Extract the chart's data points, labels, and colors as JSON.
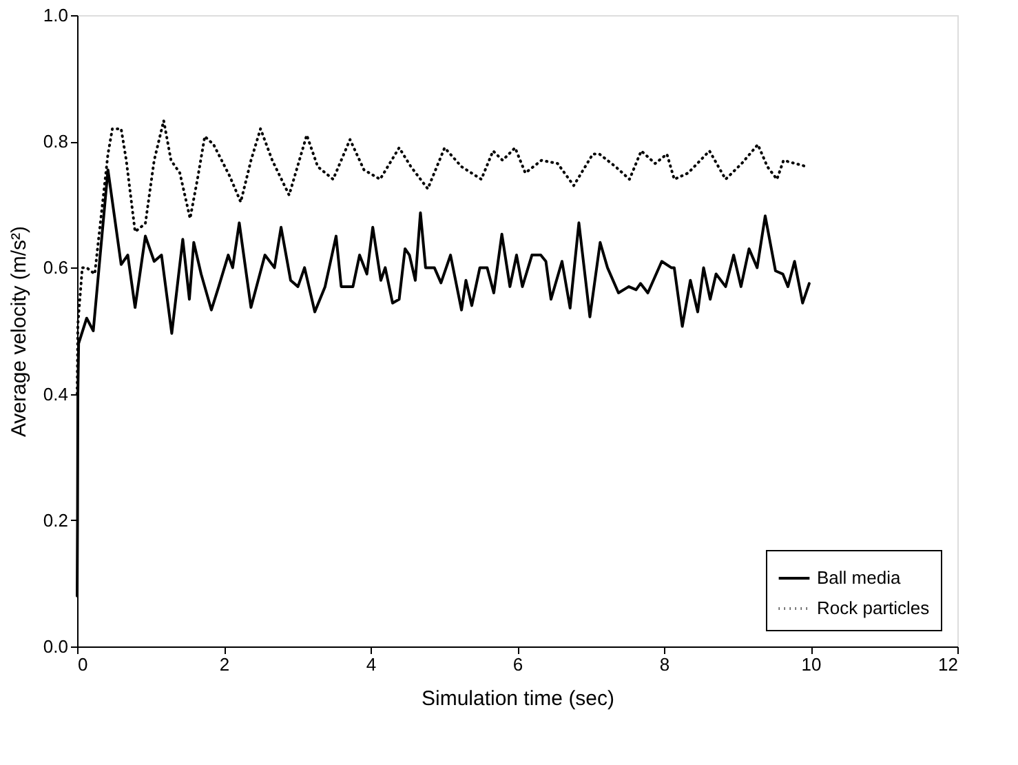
{
  "chart_data": {
    "type": "line",
    "xlabel": "Simulation time (sec)",
    "ylabel": "Average velocity (m/s²)",
    "xlim": [
      0,
      12
    ],
    "ylim": [
      0,
      1
    ],
    "xticks": [
      0,
      2,
      4,
      6,
      8,
      10,
      12
    ],
    "yticks": [
      {
        "value": 0,
        "label": "0.0"
      },
      {
        "value": 0.2,
        "label": "0.2"
      },
      {
        "value": 0.4,
        "label": "0.4"
      },
      {
        "value": 0.6,
        "label": "0.6"
      },
      {
        "value": 0.8,
        "label": "0.8"
      },
      {
        "value": 1,
        "label": "1.0"
      }
    ],
    "grid": false,
    "legend": "bottom right",
    "marker": "none",
    "series": [
      {
        "name": "Ball media",
        "color": "#000000",
        "line_style": "solid",
        "x": [
          0,
          0.005,
          0.01,
          0.02,
          0.13,
          0.22,
          0.42,
          0.6,
          0.69,
          0.79,
          0.93,
          1.05,
          1.15,
          1.29,
          1.44,
          1.53,
          1.59,
          1.69,
          1.83,
          1.93,
          2.06,
          2.12,
          2.21,
          2.37,
          2.56,
          2.69,
          2.78,
          2.91,
          3.01,
          3.1,
          3.24,
          3.38,
          3.53,
          3.6,
          3.76,
          3.85,
          3.95,
          4.03,
          4.14,
          4.2,
          4.3,
          4.39,
          4.47,
          4.53,
          4.61,
          4.68,
          4.75,
          4.87,
          4.96,
          5.09,
          5.24,
          5.3,
          5.38,
          5.49,
          5.59,
          5.68,
          5.79,
          5.9,
          5.99,
          6.07,
          6.2,
          6.32,
          6.39,
          6.46,
          6.61,
          6.72,
          6.84,
          6.99,
          7.13,
          7.23,
          7.38,
          7.52,
          7.62,
          7.68,
          7.78,
          7.97,
          8.1,
          8.14,
          8.25,
          8.36,
          8.46,
          8.54,
          8.63,
          8.71,
          8.84,
          8.95,
          9.05,
          9.16,
          9.27,
          9.38,
          9.52,
          9.62,
          9.69,
          9.78,
          9.89,
          9.98
        ],
        "values": [
          0.08,
          0.2,
          0.4,
          0.48,
          0.52,
          0.5,
          0.755,
          0.605,
          0.62,
          0.537,
          0.65,
          0.61,
          0.62,
          0.496,
          0.645,
          0.55,
          0.64,
          0.59,
          0.533,
          0.57,
          0.62,
          0.6,
          0.671,
          0.537,
          0.62,
          0.6,
          0.664,
          0.58,
          0.57,
          0.6,
          0.53,
          0.57,
          0.65,
          0.57,
          0.57,
          0.62,
          0.59,
          0.664,
          0.58,
          0.6,
          0.544,
          0.55,
          0.63,
          0.62,
          0.58,
          0.687,
          0.6,
          0.6,
          0.576,
          0.62,
          0.533,
          0.58,
          0.54,
          0.6,
          0.6,
          0.56,
          0.653,
          0.57,
          0.62,
          0.57,
          0.62,
          0.62,
          0.61,
          0.55,
          0.61,
          0.536,
          0.671,
          0.522,
          0.64,
          0.6,
          0.56,
          0.57,
          0.565,
          0.575,
          0.56,
          0.61,
          0.6,
          0.6,
          0.507,
          0.58,
          0.53,
          0.6,
          0.55,
          0.59,
          0.57,
          0.62,
          0.57,
          0.63,
          0.6,
          0.682,
          0.595,
          0.59,
          0.57,
          0.61,
          0.544,
          0.575
        ]
      },
      {
        "name": "Rock particles",
        "color": "#000000",
        "line_style": "dotted",
        "x": [
          0,
          0.01,
          0.07,
          0.13,
          0.24,
          0.42,
          0.48,
          0.6,
          0.67,
          0.79,
          0.93,
          1.05,
          1.18,
          1.28,
          1.4,
          1.54,
          1.64,
          1.74,
          1.86,
          2.08,
          2.23,
          2.37,
          2.5,
          2.66,
          2.89,
          3.13,
          3.28,
          3.49,
          3.72,
          3.91,
          4.13,
          4.39,
          4.55,
          4.78,
          5.01,
          5.24,
          5.51,
          5.67,
          5.8,
          5.97,
          6.11,
          6.33,
          6.55,
          6.77,
          7.03,
          7.12,
          7.34,
          7.53,
          7.69,
          7.88,
          8.04,
          8.14,
          8.33,
          8.62,
          8.84,
          9.06,
          9.28,
          9.41,
          9.54,
          9.63,
          9.79,
          9.95
        ],
        "values": [
          0.4,
          0.51,
          0.6,
          0.6,
          0.59,
          0.78,
          0.82,
          0.82,
          0.77,
          0.657,
          0.67,
          0.77,
          0.833,
          0.77,
          0.75,
          0.678,
          0.74,
          0.808,
          0.795,
          0.745,
          0.704,
          0.77,
          0.82,
          0.77,
          0.715,
          0.81,
          0.76,
          0.74,
          0.803,
          0.755,
          0.74,
          0.79,
          0.76,
          0.725,
          0.79,
          0.76,
          0.74,
          0.785,
          0.77,
          0.79,
          0.75,
          0.77,
          0.765,
          0.73,
          0.78,
          0.78,
          0.76,
          0.74,
          0.785,
          0.765,
          0.78,
          0.74,
          0.75,
          0.785,
          0.74,
          0.765,
          0.795,
          0.76,
          0.74,
          0.77,
          0.765,
          0.76
        ]
      }
    ]
  }
}
